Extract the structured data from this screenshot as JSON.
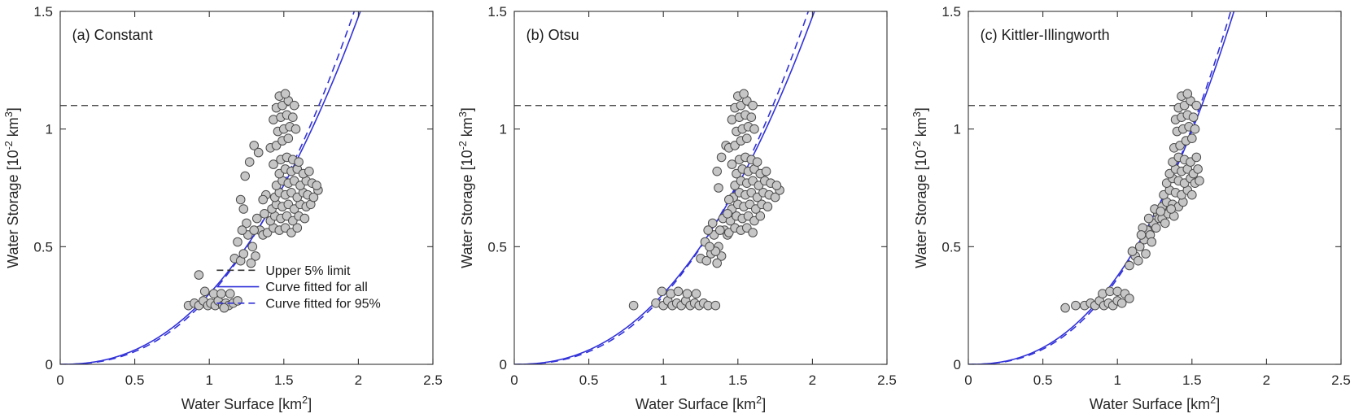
{
  "style": {
    "background": "#ffffff",
    "axis_color": "#333333",
    "tick_label_color": "#262626",
    "marker_fill": "#c6c6c6",
    "marker_edge": "#4a4a4a",
    "curve_color": "#3232d9",
    "limit_color": "#333333"
  },
  "chart_data": [
    {
      "type": "scatter",
      "title": "(a) Constant",
      "xlabel": "Water Surface [km^{2}]",
      "ylabel": "Water Storage [10^{-2} km^{3}]",
      "xlim": [
        0,
        2.5
      ],
      "ylim": [
        0,
        1.5
      ],
      "xticks": [
        [
          0,
          "0"
        ],
        [
          0.5,
          "0.5"
        ],
        [
          1,
          "1"
        ],
        [
          1.5,
          "1.5"
        ],
        [
          2,
          "2"
        ],
        [
          2.5,
          "2.5"
        ]
      ],
      "yticks": [
        [
          0,
          "0"
        ],
        [
          0.5,
          "0.5"
        ],
        [
          1,
          "1"
        ],
        [
          1.5,
          "1.5"
        ]
      ],
      "upper_limit": 1.1,
      "fit_all": {
        "a": 0.3,
        "b": 2.3
      },
      "fit_95": {
        "a": 0.29,
        "b": 2.42
      },
      "legend": [
        {
          "label": "Upper 5% limit",
          "style": "dashed",
          "color": "#333333"
        },
        {
          "label": "Curve fitted for all",
          "style": "solid",
          "color": "#3232d9"
        },
        {
          "label": "Curve fitted for 95%",
          "style": "dashed",
          "color": "#3232d9"
        }
      ],
      "points": [
        [
          0.86,
          0.25
        ],
        [
          0.9,
          0.26
        ],
        [
          0.93,
          0.25
        ],
        [
          0.96,
          0.27
        ],
        [
          0.99,
          0.25
        ],
        [
          1.01,
          0.26
        ],
        [
          1.04,
          0.25
        ],
        [
          1.06,
          0.27
        ],
        [
          1.09,
          0.25
        ],
        [
          1.11,
          0.26
        ],
        [
          1.13,
          0.25
        ],
        [
          1.16,
          0.26
        ],
        [
          1.03,
          0.3
        ],
        [
          0.97,
          0.31
        ],
        [
          1.08,
          0.3
        ],
        [
          1.14,
          0.3
        ],
        [
          0.93,
          0.38
        ],
        [
          1.19,
          0.27
        ],
        [
          1.1,
          0.24
        ],
        [
          1.17,
          0.45
        ],
        [
          1.21,
          0.44
        ],
        [
          1.23,
          0.47
        ],
        [
          1.19,
          0.52
        ],
        [
          1.26,
          0.55
        ],
        [
          1.29,
          0.5
        ],
        [
          1.31,
          0.46
        ],
        [
          1.25,
          0.6
        ],
        [
          1.34,
          0.57
        ],
        [
          1.36,
          0.55
        ],
        [
          1.28,
          0.43
        ],
        [
          1.32,
          0.62
        ],
        [
          1.22,
          0.57
        ],
        [
          1.3,
          0.57
        ],
        [
          1.24,
          0.8
        ],
        [
          1.27,
          0.86
        ],
        [
          1.3,
          0.93
        ],
        [
          1.33,
          0.9
        ],
        [
          1.21,
          0.7
        ],
        [
          1.23,
          0.66
        ],
        [
          1.39,
          0.56
        ],
        [
          1.43,
          0.58
        ],
        [
          1.47,
          0.57
        ],
        [
          1.51,
          0.58
        ],
        [
          1.55,
          0.56
        ],
        [
          1.59,
          0.58
        ],
        [
          1.41,
          0.61
        ],
        [
          1.44,
          0.63
        ],
        [
          1.48,
          0.62
        ],
        [
          1.52,
          0.63
        ],
        [
          1.56,
          0.61
        ],
        [
          1.6,
          0.63
        ],
        [
          1.64,
          0.62
        ],
        [
          1.42,
          0.66
        ],
        [
          1.45,
          0.68
        ],
        [
          1.49,
          0.67
        ],
        [
          1.53,
          0.68
        ],
        [
          1.57,
          0.66
        ],
        [
          1.61,
          0.68
        ],
        [
          1.65,
          0.67
        ],
        [
          1.68,
          0.68
        ],
        [
          1.44,
          0.71
        ],
        [
          1.47,
          0.73
        ],
        [
          1.51,
          0.72
        ],
        [
          1.55,
          0.73
        ],
        [
          1.59,
          0.71
        ],
        [
          1.63,
          0.73
        ],
        [
          1.66,
          0.72
        ],
        [
          1.7,
          0.71
        ],
        [
          1.73,
          0.74
        ],
        [
          1.45,
          0.76
        ],
        [
          1.49,
          0.78
        ],
        [
          1.53,
          0.77
        ],
        [
          1.57,
          0.78
        ],
        [
          1.61,
          0.76
        ],
        [
          1.65,
          0.78
        ],
        [
          1.69,
          0.77
        ],
        [
          1.72,
          0.76
        ],
        [
          1.47,
          0.81
        ],
        [
          1.51,
          0.83
        ],
        [
          1.55,
          0.82
        ],
        [
          1.59,
          0.83
        ],
        [
          1.63,
          0.81
        ],
        [
          1.67,
          0.82
        ],
        [
          1.43,
          0.85
        ],
        [
          1.48,
          0.87
        ],
        [
          1.52,
          0.88
        ],
        [
          1.56,
          0.87
        ],
        [
          1.6,
          0.86
        ],
        [
          1.37,
          0.64
        ],
        [
          1.38,
          0.72
        ],
        [
          1.36,
          0.7
        ],
        [
          1.41,
          0.92
        ],
        [
          1.45,
          0.93
        ],
        [
          1.49,
          0.95
        ],
        [
          1.53,
          0.96
        ],
        [
          1.46,
          0.99
        ],
        [
          1.5,
          1.0
        ],
        [
          1.54,
          1.01
        ],
        [
          1.58,
          1.0
        ],
        [
          1.43,
          1.04
        ],
        [
          1.48,
          1.05
        ],
        [
          1.52,
          1.06
        ],
        [
          1.56,
          1.05
        ],
        [
          1.45,
          1.09
        ],
        [
          1.49,
          1.1
        ],
        [
          1.53,
          1.12
        ],
        [
          1.57,
          1.1
        ],
        [
          1.47,
          1.14
        ],
        [
          1.51,
          1.15
        ]
      ]
    },
    {
      "type": "scatter",
      "title": "(b) Otsu",
      "xlabel": "Water Surface [km^{2}]",
      "ylabel": "Water Storage [10^{-2} km^{3}]",
      "xlim": [
        0,
        2.5
      ],
      "ylim": [
        0,
        1.5
      ],
      "xticks": [
        [
          0,
          "0"
        ],
        [
          0.5,
          "0.5"
        ],
        [
          1,
          "1"
        ],
        [
          1.5,
          "1.5"
        ],
        [
          2,
          "2"
        ],
        [
          2.5,
          "2.5"
        ]
      ],
      "yticks": [
        [
          0,
          "0"
        ],
        [
          0.5,
          "0.5"
        ],
        [
          1,
          "1"
        ],
        [
          1.5,
          "1.5"
        ]
      ],
      "upper_limit": 1.1,
      "fit_all": {
        "a": 0.3,
        "b": 2.3
      },
      "fit_95": {
        "a": 0.29,
        "b": 2.42
      },
      "legend": null,
      "points": [
        [
          0.8,
          0.25
        ],
        [
          0.95,
          0.26
        ],
        [
          1.0,
          0.25
        ],
        [
          1.03,
          0.27
        ],
        [
          1.06,
          0.25
        ],
        [
          1.09,
          0.26
        ],
        [
          1.12,
          0.25
        ],
        [
          1.15,
          0.27
        ],
        [
          1.18,
          0.25
        ],
        [
          1.21,
          0.26
        ],
        [
          1.24,
          0.25
        ],
        [
          1.27,
          0.26
        ],
        [
          1.3,
          0.25
        ],
        [
          1.35,
          0.25
        ],
        [
          1.05,
          0.3
        ],
        [
          1.1,
          0.31
        ],
        [
          1.16,
          0.3
        ],
        [
          1.22,
          0.3
        ],
        [
          0.99,
          0.31
        ],
        [
          1.25,
          0.45
        ],
        [
          1.29,
          0.44
        ],
        [
          1.32,
          0.47
        ],
        [
          1.28,
          0.52
        ],
        [
          1.34,
          0.55
        ],
        [
          1.37,
          0.5
        ],
        [
          1.39,
          0.46
        ],
        [
          1.33,
          0.6
        ],
        [
          1.41,
          0.57
        ],
        [
          1.43,
          0.55
        ],
        [
          1.36,
          0.43
        ],
        [
          1.4,
          0.62
        ],
        [
          1.3,
          0.57
        ],
        [
          1.38,
          0.57
        ],
        [
          1.35,
          0.48
        ],
        [
          1.31,
          0.5
        ],
        [
          1.36,
          0.82
        ],
        [
          1.39,
          0.88
        ],
        [
          1.42,
          0.93
        ],
        [
          1.37,
          0.75
        ],
        [
          1.44,
          0.56
        ],
        [
          1.48,
          0.58
        ],
        [
          1.52,
          0.57
        ],
        [
          1.56,
          0.58
        ],
        [
          1.6,
          0.56
        ],
        [
          1.45,
          0.61
        ],
        [
          1.49,
          0.63
        ],
        [
          1.53,
          0.62
        ],
        [
          1.57,
          0.63
        ],
        [
          1.61,
          0.61
        ],
        [
          1.65,
          0.63
        ],
        [
          1.46,
          0.66
        ],
        [
          1.5,
          0.68
        ],
        [
          1.54,
          0.67
        ],
        [
          1.58,
          0.68
        ],
        [
          1.62,
          0.66
        ],
        [
          1.66,
          0.68
        ],
        [
          1.7,
          0.67
        ],
        [
          1.47,
          0.71
        ],
        [
          1.51,
          0.73
        ],
        [
          1.55,
          0.72
        ],
        [
          1.59,
          0.73
        ],
        [
          1.63,
          0.71
        ],
        [
          1.67,
          0.73
        ],
        [
          1.71,
          0.72
        ],
        [
          1.75,
          0.71
        ],
        [
          1.78,
          0.74
        ],
        [
          1.48,
          0.76
        ],
        [
          1.52,
          0.78
        ],
        [
          1.56,
          0.77
        ],
        [
          1.6,
          0.78
        ],
        [
          1.64,
          0.76
        ],
        [
          1.68,
          0.78
        ],
        [
          1.72,
          0.77
        ],
        [
          1.76,
          0.76
        ],
        [
          1.49,
          0.81
        ],
        [
          1.53,
          0.83
        ],
        [
          1.57,
          0.82
        ],
        [
          1.61,
          0.83
        ],
        [
          1.65,
          0.81
        ],
        [
          1.69,
          0.82
        ],
        [
          1.46,
          0.85
        ],
        [
          1.51,
          0.87
        ],
        [
          1.55,
          0.88
        ],
        [
          1.59,
          0.87
        ],
        [
          1.63,
          0.86
        ],
        [
          1.43,
          0.64
        ],
        [
          1.44,
          0.7
        ],
        [
          1.44,
          0.92
        ],
        [
          1.48,
          0.93
        ],
        [
          1.52,
          0.95
        ],
        [
          1.56,
          0.96
        ],
        [
          1.49,
          0.99
        ],
        [
          1.53,
          1.0
        ],
        [
          1.57,
          1.01
        ],
        [
          1.61,
          1.0
        ],
        [
          1.46,
          1.04
        ],
        [
          1.51,
          1.05
        ],
        [
          1.55,
          1.06
        ],
        [
          1.59,
          1.05
        ],
        [
          1.48,
          1.09
        ],
        [
          1.52,
          1.1
        ],
        [
          1.56,
          1.12
        ],
        [
          1.6,
          1.1
        ],
        [
          1.5,
          1.14
        ],
        [
          1.54,
          1.15
        ]
      ]
    },
    {
      "type": "scatter",
      "title": "(c) Kittler-Illingworth",
      "xlabel": "Water Surface [km^{2}]",
      "ylabel": "Water Storage [10^{-2} km^{3}]",
      "xlim": [
        0,
        2.5
      ],
      "ylim": [
        0,
        1.5
      ],
      "xticks": [
        [
          0,
          "0"
        ],
        [
          0.5,
          "0.5"
        ],
        [
          1,
          "1"
        ],
        [
          1.5,
          "1.5"
        ],
        [
          2,
          "2"
        ],
        [
          2.5,
          "2.5"
        ]
      ],
      "yticks": [
        [
          0,
          "0"
        ],
        [
          0.5,
          "0.5"
        ],
        [
          1,
          "1"
        ],
        [
          1.5,
          "1.5"
        ]
      ],
      "upper_limit": 1.1,
      "fit_all": {
        "a": 0.375,
        "b": 2.4
      },
      "fit_95": {
        "a": 0.365,
        "b": 2.5
      },
      "legend": null,
      "points": [
        [
          0.65,
          0.24
        ],
        [
          0.72,
          0.25
        ],
        [
          0.78,
          0.25
        ],
        [
          0.82,
          0.26
        ],
        [
          0.85,
          0.25
        ],
        [
          0.88,
          0.27
        ],
        [
          0.91,
          0.25
        ],
        [
          0.94,
          0.26
        ],
        [
          0.97,
          0.25
        ],
        [
          1.0,
          0.27
        ],
        [
          1.03,
          0.26
        ],
        [
          0.9,
          0.3
        ],
        [
          0.95,
          0.31
        ],
        [
          1.0,
          0.31
        ],
        [
          1.05,
          0.3
        ],
        [
          1.08,
          0.28
        ],
        [
          1.08,
          0.42
        ],
        [
          1.12,
          0.46
        ],
        [
          1.15,
          0.5
        ],
        [
          1.18,
          0.53
        ],
        [
          1.1,
          0.48
        ],
        [
          1.14,
          0.44
        ],
        [
          1.2,
          0.57
        ],
        [
          1.22,
          0.55
        ],
        [
          1.24,
          0.6
        ],
        [
          1.17,
          0.58
        ],
        [
          1.21,
          0.62
        ],
        [
          1.26,
          0.58
        ],
        [
          1.19,
          0.47
        ],
        [
          1.23,
          0.52
        ],
        [
          1.27,
          0.64
        ],
        [
          1.16,
          0.55
        ],
        [
          1.25,
          0.66
        ],
        [
          1.28,
          0.62
        ],
        [
          1.3,
          0.62
        ],
        [
          1.34,
          0.64
        ],
        [
          1.38,
          0.63
        ],
        [
          1.3,
          0.67
        ],
        [
          1.33,
          0.69
        ],
        [
          1.37,
          0.68
        ],
        [
          1.41,
          0.67
        ],
        [
          1.44,
          0.69
        ],
        [
          1.31,
          0.72
        ],
        [
          1.35,
          0.74
        ],
        [
          1.39,
          0.73
        ],
        [
          1.43,
          0.72
        ],
        [
          1.47,
          0.74
        ],
        [
          1.5,
          0.72
        ],
        [
          1.33,
          0.77
        ],
        [
          1.37,
          0.79
        ],
        [
          1.41,
          0.78
        ],
        [
          1.45,
          0.77
        ],
        [
          1.49,
          0.79
        ],
        [
          1.52,
          0.77
        ],
        [
          1.55,
          0.78
        ],
        [
          1.35,
          0.81
        ],
        [
          1.39,
          0.83
        ],
        [
          1.43,
          0.82
        ],
        [
          1.47,
          0.83
        ],
        [
          1.51,
          0.81
        ],
        [
          1.54,
          0.83
        ],
        [
          1.37,
          0.86
        ],
        [
          1.41,
          0.88
        ],
        [
          1.45,
          0.87
        ],
        [
          1.49,
          0.86
        ],
        [
          1.53,
          0.88
        ],
        [
          1.29,
          0.65
        ],
        [
          1.32,
          0.6
        ],
        [
          1.36,
          0.66
        ],
        [
          1.38,
          0.92
        ],
        [
          1.42,
          0.93
        ],
        [
          1.46,
          0.95
        ],
        [
          1.5,
          0.96
        ],
        [
          1.4,
          0.99
        ],
        [
          1.44,
          1.0
        ],
        [
          1.48,
          1.01
        ],
        [
          1.52,
          1.0
        ],
        [
          1.39,
          1.04
        ],
        [
          1.43,
          1.05
        ],
        [
          1.47,
          1.06
        ],
        [
          1.51,
          1.05
        ],
        [
          1.41,
          1.09
        ],
        [
          1.45,
          1.1
        ],
        [
          1.49,
          1.12
        ],
        [
          1.53,
          1.1
        ],
        [
          1.43,
          1.14
        ],
        [
          1.47,
          1.15
        ]
      ]
    }
  ]
}
